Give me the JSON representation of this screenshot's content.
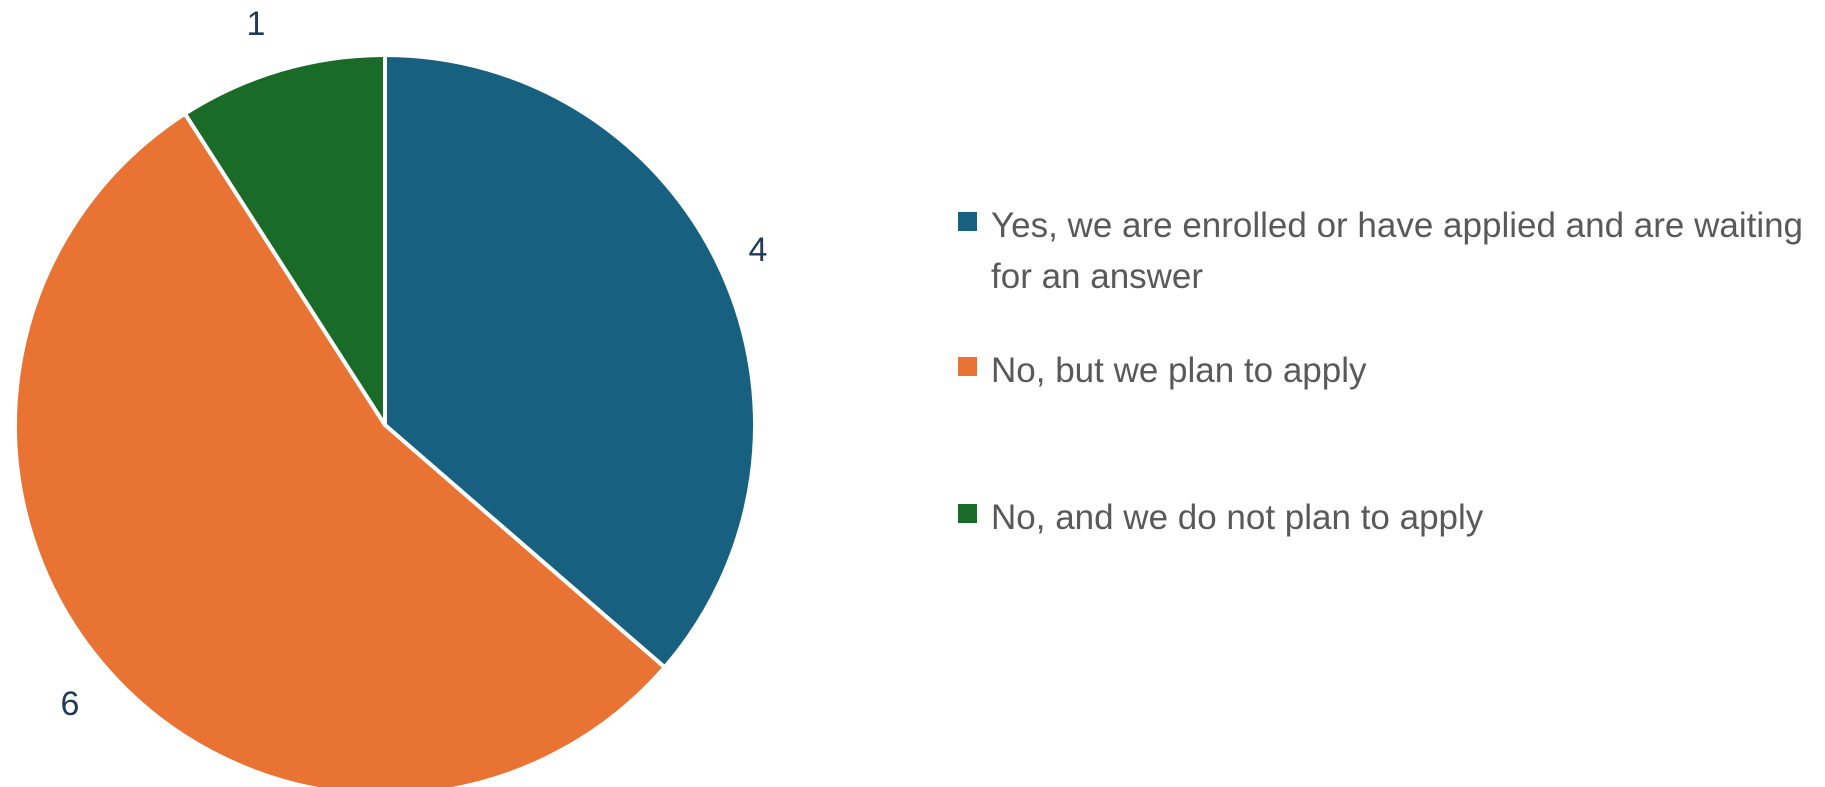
{
  "chart_data": {
    "type": "pie",
    "title": "",
    "categories": [
      "Yes, we are enrolled or have applied and are waiting for an answer",
      "No, but we plan to apply",
      "No, and we do not plan to apply"
    ],
    "values": [
      4,
      6,
      1
    ],
    "data_labels": [
      "4",
      "6",
      "1"
    ],
    "colors": [
      "#17607f",
      "#e97333",
      "#1b6b28"
    ],
    "legend_placement": "right",
    "start_angle": "12 o'clock",
    "direction": "clockwise"
  }
}
